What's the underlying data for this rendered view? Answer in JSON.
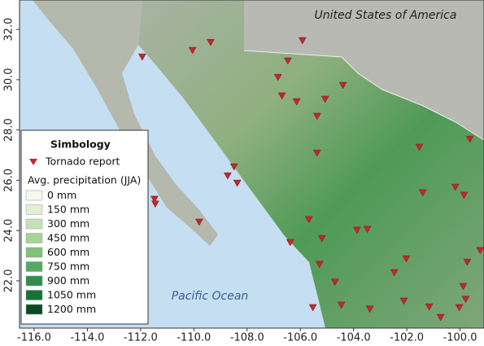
{
  "map": {
    "xlim": [
      -116.55,
      -99.1
    ],
    "ylim": [
      20.12,
      33.17
    ],
    "xticks": [
      {
        "value": -116,
        "label": "-116.0"
      },
      {
        "value": -114,
        "label": "-114.0"
      },
      {
        "value": -112,
        "label": "-112.0"
      },
      {
        "value": -110,
        "label": "-110.0"
      },
      {
        "value": -108,
        "label": "-108.0"
      },
      {
        "value": -106,
        "label": "-106.0"
      },
      {
        "value": -104,
        "label": "-104.0"
      },
      {
        "value": -102,
        "label": "-102.0"
      },
      {
        "value": -100,
        "label": "-100.0"
      }
    ],
    "yticks": [
      {
        "value": 22,
        "label": "22.0"
      },
      {
        "value": 24,
        "label": "24.0"
      },
      {
        "value": 26,
        "label": "26.0"
      },
      {
        "value": 28,
        "label": "28.0"
      },
      {
        "value": 30,
        "label": "30.0"
      },
      {
        "value": 32,
        "label": "32.0"
      }
    ],
    "labels": {
      "country": "United States of America",
      "ocean": "Pacific Ocean"
    },
    "tornado_color": "#c0282d",
    "tornado_reports": {
      "lon": [
        -111.94,
        -110.05,
        -109.37,
        -105.92,
        -106.47,
        -106.84,
        -104.4,
        -106.69,
        -106.14,
        -105.07,
        -105.37,
        -101.53,
        -99.63,
        -105.37,
        -108.49,
        -108.73,
        -108.37,
        -111.48,
        -111.45,
        -109.8,
        -101.4,
        -100.18,
        -99.85,
        -105.68,
        -103.48,
        -106.38,
        -105.19,
        -103.87,
        -102.02,
        -99.24,
        -105.28,
        -104.7,
        -102.47,
        -99.73,
        -99.88,
        -105.53,
        -104.46,
        -103.39,
        -102.11,
        -101.16,
        -100.03,
        -99.79,
        -100.73
      ],
      "lat": [
        30.9,
        31.16,
        31.48,
        31.55,
        30.74,
        30.09,
        29.77,
        29.35,
        29.12,
        29.22,
        28.54,
        27.31,
        27.63,
        27.08,
        26.53,
        26.17,
        25.88,
        25.24,
        25.05,
        24.33,
        25.5,
        25.72,
        25.4,
        24.43,
        24.04,
        23.52,
        23.68,
        24.01,
        22.87,
        23.2,
        22.65,
        21.94,
        22.32,
        22.74,
        21.77,
        20.93,
        21.03,
        20.87,
        21.19,
        20.96,
        20.93,
        21.26,
        20.54
      ]
    },
    "legend": {
      "title": "Simbology",
      "tornado": "Tornado report",
      "precip_title": "Avg. precipitation (JJA)",
      "classes": [
        {
          "label": "0 mm",
          "color": "#f4f8ef"
        },
        {
          "label": "150 mm",
          "color": "#e2efd6"
        },
        {
          "label": "300 mm",
          "color": "#c7e2b8"
        },
        {
          "label": "450 mm",
          "color": "#a6d396"
        },
        {
          "label": "600 mm",
          "color": "#7fc17a"
        },
        {
          "label": "750 mm",
          "color": "#53ab60"
        },
        {
          "label": "900 mm",
          "color": "#2d8f48"
        },
        {
          "label": "1050 mm",
          "color": "#177337"
        },
        {
          "label": "1200 mm",
          "color": "#0a4a22"
        }
      ]
    }
  }
}
